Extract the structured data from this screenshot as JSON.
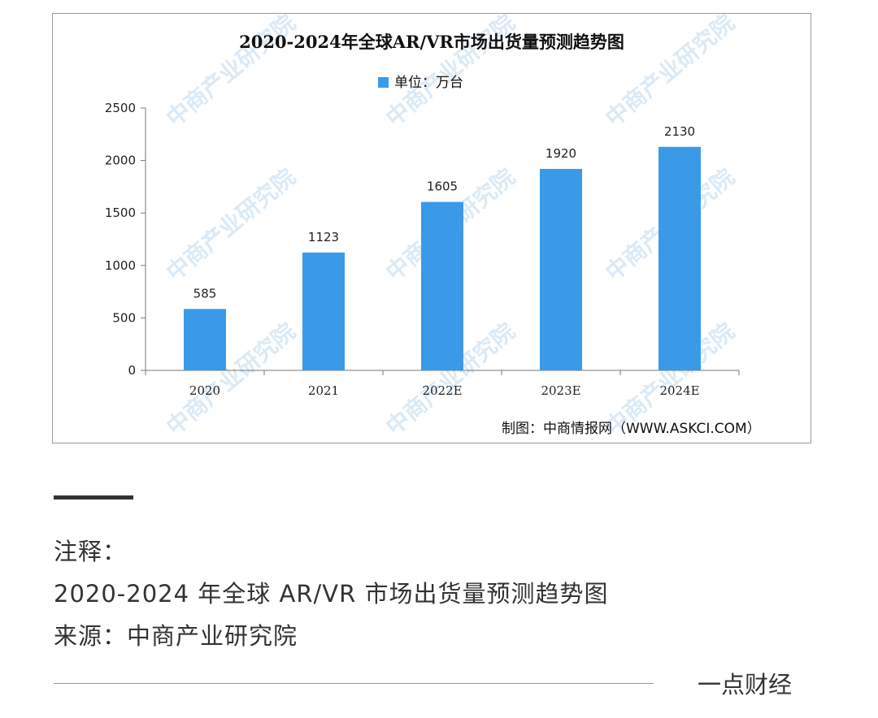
{
  "chart_data": {
    "type": "bar",
    "title": "2020-2024年全球AR/VR市场出货量预测趋势图",
    "legend": "单位：万台",
    "categories": [
      "2020",
      "2021",
      "2022E",
      "2023E",
      "2024E"
    ],
    "values": [
      585,
      1123,
      1605,
      1920,
      2130
    ],
    "value_labels": [
      "585",
      "1123",
      "1605",
      "1920",
      "2130"
    ],
    "yticks": [
      "0",
      "500",
      "1000",
      "1500",
      "2000",
      "2500"
    ],
    "ylim": [
      0,
      2500
    ],
    "grid": false,
    "legend_position": "top-center",
    "bar_color": "#3a9ae8",
    "source": "制图：中商情报网（WWW.ASKCI.COM）",
    "watermark": "中商产业研究院"
  },
  "caption": {
    "note_label": "注释：",
    "note_text": "2020-2024 年全球 AR/VR 市场出货量预测趋势图",
    "source": "来源：中商产业研究院"
  },
  "footer": {
    "brand": "一点财经"
  }
}
